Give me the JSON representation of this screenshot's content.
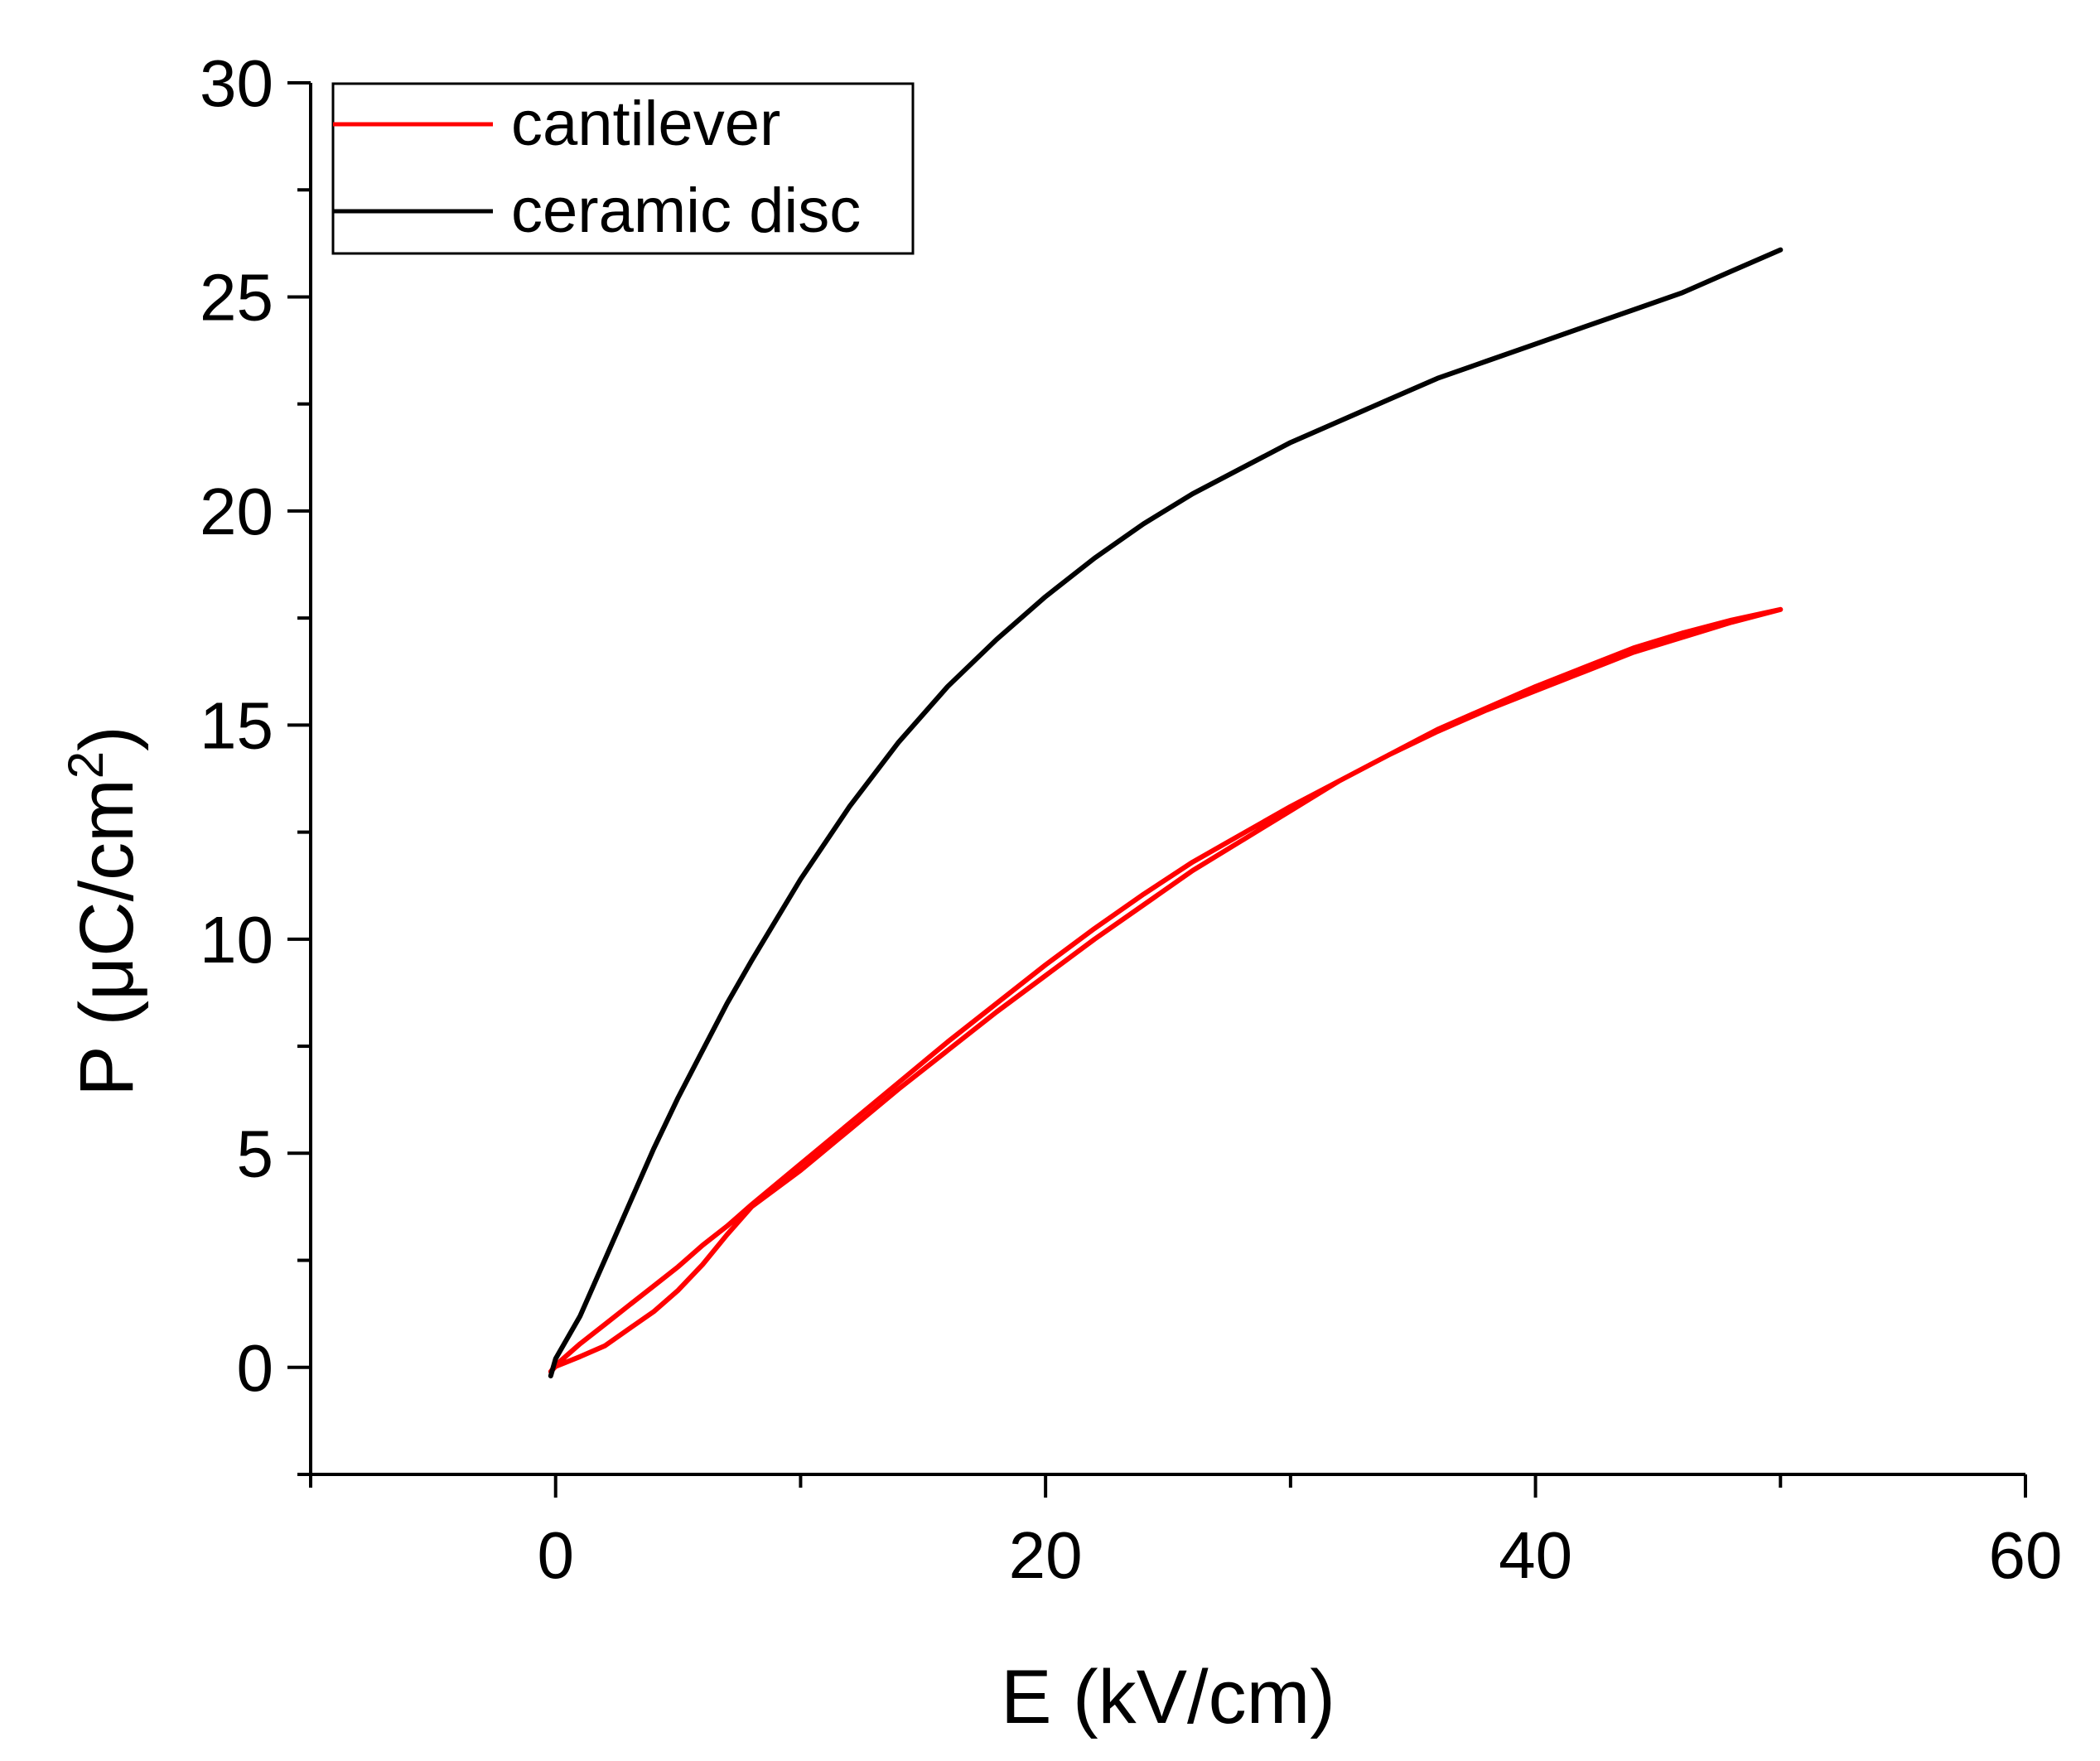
{
  "chart_data": {
    "type": "line",
    "title": "",
    "xlabel": "E (kV/cm)",
    "ylabel": {
      "prefix": "P (μC/cm",
      "sup": "2",
      "suffix": ")"
    },
    "xlim": [
      -10,
      60
    ],
    "ylim": [
      -2.5,
      30
    ],
    "xticks": [
      0,
      20,
      40,
      60
    ],
    "xtick_labels": [
      "0",
      "20",
      "40",
      "60"
    ],
    "x_minor_step": 10,
    "yticks": [
      0,
      5,
      10,
      15,
      20,
      25,
      30
    ],
    "ytick_labels": [
      "0",
      "5",
      "10",
      "15",
      "20",
      "25",
      "30"
    ],
    "y_minor_step": 2.5,
    "grid": false,
    "legend_position": "top-left",
    "colors": {
      "axis": "#000000",
      "background": "#ffffff"
    },
    "series": [
      {
        "name": "cantilever",
        "color": "#ff0000",
        "x": [
          -0.2,
          0,
          1,
          2,
          3,
          4,
          5,
          6,
          7,
          8,
          10,
          12,
          14,
          16,
          18,
          20,
          22,
          24,
          26,
          28,
          30,
          32,
          34,
          36,
          38,
          40,
          42,
          44,
          46,
          48,
          50,
          48,
          46,
          44,
          42,
          40,
          38,
          36,
          34,
          32,
          30,
          28,
          26,
          24,
          22,
          20,
          18,
          16,
          14,
          12,
          10,
          8,
          7,
          6,
          5,
          4,
          3,
          2,
          1,
          0,
          -0.2
        ],
        "y": [
          -0.1,
          0.02,
          0.25,
          0.5,
          0.9,
          1.3,
          1.8,
          2.4,
          3.1,
          3.75,
          4.6,
          5.55,
          6.5,
          7.4,
          8.3,
          9.15,
          10.0,
          10.8,
          11.6,
          12.3,
          13.0,
          13.7,
          14.3,
          14.9,
          15.4,
          15.9,
          16.35,
          16.8,
          17.15,
          17.45,
          17.7,
          17.4,
          17.05,
          16.7,
          16.25,
          15.8,
          15.35,
          14.85,
          14.3,
          13.7,
          13.1,
          12.45,
          11.8,
          11.05,
          10.25,
          9.4,
          8.5,
          7.6,
          6.65,
          5.7,
          4.75,
          3.8,
          3.3,
          2.85,
          2.35,
          1.9,
          1.45,
          1.0,
          0.55,
          0.05,
          -0.1
        ]
      },
      {
        "name": "ceramic disc",
        "color": "#000000",
        "x": [
          -0.2,
          0,
          1,
          2,
          3,
          4,
          5,
          6,
          7,
          8,
          10,
          12,
          14,
          16,
          18,
          20,
          22,
          24,
          26,
          28,
          30,
          32,
          34,
          36,
          38,
          40,
          42,
          44,
          46,
          48,
          50
        ],
        "y": [
          -0.2,
          0.2,
          1.2,
          2.5,
          3.8,
          5.1,
          6.3,
          7.4,
          8.5,
          9.5,
          11.4,
          13.1,
          14.6,
          15.9,
          17.0,
          18.0,
          18.9,
          19.7,
          20.4,
          21.0,
          21.6,
          22.1,
          22.6,
          23.1,
          23.5,
          23.9,
          24.3,
          24.7,
          25.1,
          25.6,
          26.1
        ]
      }
    ]
  }
}
